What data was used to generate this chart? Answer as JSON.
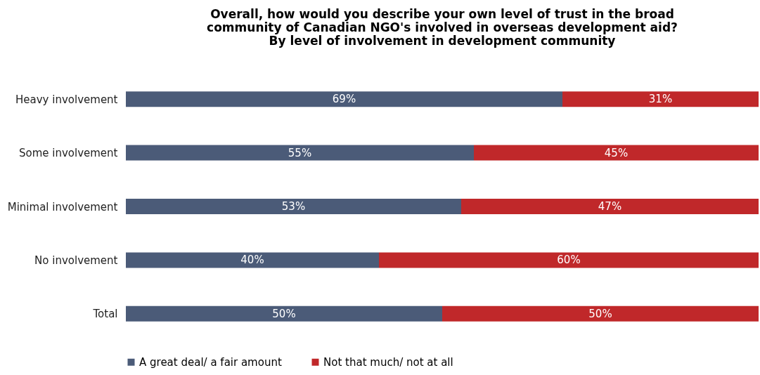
{
  "chart_data": {
    "type": "bar",
    "orientation": "horizontal",
    "stacked": true,
    "title": [
      "Overall, how would you describe your own level of trust in the broad",
      "community of Canadian NGO's involved in overseas development aid?",
      "By level of involvement in development community"
    ],
    "categories": [
      "Heavy involvement",
      "Some involvement",
      "Minimal involvement",
      "No involvement",
      "Total"
    ],
    "series": [
      {
        "name": "A great deal/ a fair amount",
        "color": "#4b5b78",
        "values": [
          69,
          55,
          53,
          40,
          50
        ],
        "value_labels": [
          "69%",
          "55%",
          "53%",
          "40%",
          "50%"
        ]
      },
      {
        "name": "Not that much/ not at all",
        "color": "#c0282a",
        "values": [
          31,
          45,
          47,
          60,
          50
        ],
        "value_labels": [
          "31%",
          "45%",
          "47%",
          "60%",
          "50%"
        ]
      }
    ],
    "legend": "bottom",
    "grid": false
  }
}
